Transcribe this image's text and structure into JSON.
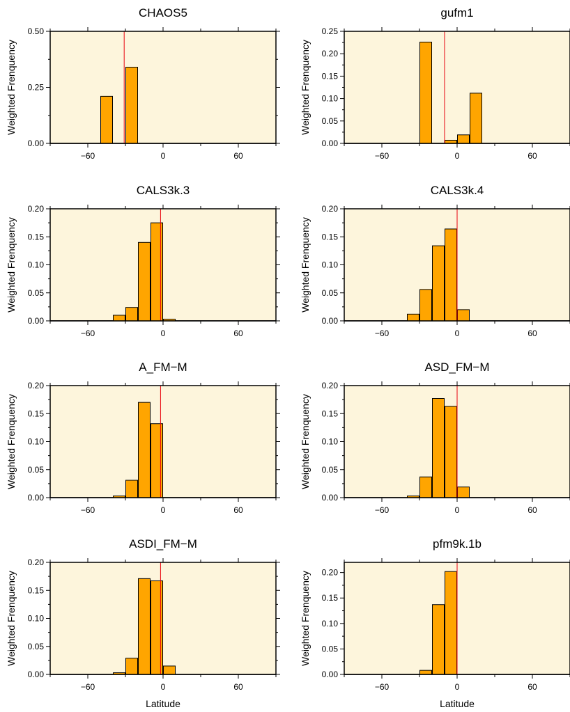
{
  "figure": {
    "colors": {
      "plot_background": "#fdf5dc",
      "bar_fill": "#ffa500",
      "bar_stroke": "#000000",
      "marker_line": "#e8000b"
    }
  },
  "chart_data": [
    {
      "type": "bar",
      "title": "CHAOS5",
      "ylabel": "Weighted Frenquency",
      "xlabel": "",
      "xlim": [
        -90,
        90
      ],
      "ylim": [
        0,
        0.5
      ],
      "yticks": [
        "0.00",
        "0.25",
        "0.50"
      ],
      "ytick_values": [
        0,
        0.25,
        0.5
      ],
      "xticks": [
        "−60",
        "0",
        "60"
      ],
      "xtick_values": [
        -60,
        0,
        60
      ],
      "bin_edges": [
        -90,
        -80,
        -70,
        -60,
        -50,
        -40,
        -30,
        -20,
        -10,
        0,
        10,
        20,
        30,
        40,
        50,
        60,
        70,
        80,
        90
      ],
      "values": [
        0,
        0,
        0,
        0,
        0.21,
        0,
        0.34,
        0,
        0,
        0,
        0,
        0,
        0,
        0,
        0,
        0,
        0,
        0
      ],
      "marker_x": -31
    },
    {
      "type": "bar",
      "title": "gufm1",
      "ylabel": "Weighted Frenquency",
      "xlabel": "",
      "xlim": [
        -90,
        90
      ],
      "ylim": [
        0,
        0.25
      ],
      "yticks": [
        "0.00",
        "0.05",
        "0.10",
        "0.15",
        "0.20",
        "0.25"
      ],
      "ytick_values": [
        0,
        0.05,
        0.1,
        0.15,
        0.2,
        0.25
      ],
      "xticks": [
        "−60",
        "0",
        "60"
      ],
      "xtick_values": [
        -60,
        0,
        60
      ],
      "bin_edges": [
        -90,
        -80,
        -70,
        -60,
        -50,
        -40,
        -30,
        -20,
        -10,
        0,
        10,
        20,
        30,
        40,
        50,
        60,
        70,
        80,
        90
      ],
      "values": [
        0,
        0,
        0,
        0,
        0,
        0,
        0.226,
        0,
        0.007,
        0.019,
        0.112,
        0,
        0,
        0,
        0,
        0,
        0,
        0
      ],
      "marker_x": -10
    },
    {
      "type": "bar",
      "title": "CALS3k.3",
      "ylabel": "Weighted Frenquency",
      "xlabel": "",
      "xlim": [
        -90,
        90
      ],
      "ylim": [
        0,
        0.2
      ],
      "yticks": [
        "0.00",
        "0.05",
        "0.10",
        "0.15",
        "0.20"
      ],
      "ytick_values": [
        0,
        0.05,
        0.1,
        0.15,
        0.2
      ],
      "xticks": [
        "−60",
        "0",
        "60"
      ],
      "xtick_values": [
        -60,
        0,
        60
      ],
      "bin_edges": [
        -90,
        -80,
        -70,
        -60,
        -50,
        -40,
        -30,
        -20,
        -10,
        0,
        10,
        20,
        30,
        40,
        50,
        60,
        70,
        80,
        90
      ],
      "values": [
        0,
        0,
        0,
        0,
        0,
        0.01,
        0.024,
        0.14,
        0.175,
        0.003,
        0,
        0,
        0,
        0,
        0,
        0,
        0,
        0
      ],
      "marker_x": -2
    },
    {
      "type": "bar",
      "title": "CALS3k.4",
      "ylabel": "Weighted Frenquency",
      "xlabel": "",
      "xlim": [
        -90,
        90
      ],
      "ylim": [
        0,
        0.2
      ],
      "yticks": [
        "0.00",
        "0.05",
        "0.10",
        "0.15",
        "0.20"
      ],
      "ytick_values": [
        0,
        0.05,
        0.1,
        0.15,
        0.2
      ],
      "xticks": [
        "−60",
        "0",
        "60"
      ],
      "xtick_values": [
        -60,
        0,
        60
      ],
      "bin_edges": [
        -90,
        -80,
        -70,
        -60,
        -50,
        -40,
        -30,
        -20,
        -10,
        0,
        10,
        20,
        30,
        40,
        50,
        60,
        70,
        80,
        90
      ],
      "values": [
        0,
        0,
        0,
        0,
        0,
        0.012,
        0.056,
        0.134,
        0.164,
        0.02,
        0,
        0,
        0,
        0,
        0,
        0,
        0,
        0
      ],
      "marker_x": 0
    },
    {
      "type": "bar",
      "title": "A_FM−M",
      "ylabel": "Weighted Frenquency",
      "xlabel": "",
      "xlim": [
        -90,
        90
      ],
      "ylim": [
        0,
        0.2
      ],
      "yticks": [
        "0.00",
        "0.05",
        "0.10",
        "0.15",
        "0.20"
      ],
      "ytick_values": [
        0,
        0.05,
        0.1,
        0.15,
        0.2
      ],
      "xticks": [
        "−60",
        "0",
        "60"
      ],
      "xtick_values": [
        -60,
        0,
        60
      ],
      "bin_edges": [
        -90,
        -80,
        -70,
        -60,
        -50,
        -40,
        -30,
        -20,
        -10,
        0,
        10,
        20,
        30,
        40,
        50,
        60,
        70,
        80,
        90
      ],
      "values": [
        0,
        0,
        0,
        0,
        0,
        0.003,
        0.031,
        0.17,
        0.132,
        0,
        0,
        0,
        0,
        0,
        0,
        0,
        0,
        0
      ],
      "marker_x": -2
    },
    {
      "type": "bar",
      "title": "ASD_FM−M",
      "ylabel": "Weighted Frenquency",
      "xlabel": "",
      "xlim": [
        -90,
        90
      ],
      "ylim": [
        0,
        0.2
      ],
      "yticks": [
        "0.00",
        "0.05",
        "0.10",
        "0.15",
        "0.20"
      ],
      "ytick_values": [
        0,
        0.05,
        0.1,
        0.15,
        0.2
      ],
      "xticks": [
        "−60",
        "0",
        "60"
      ],
      "xtick_values": [
        -60,
        0,
        60
      ],
      "bin_edges": [
        -90,
        -80,
        -70,
        -60,
        -50,
        -40,
        -30,
        -20,
        -10,
        0,
        10,
        20,
        30,
        40,
        50,
        60,
        70,
        80,
        90
      ],
      "values": [
        0,
        0,
        0,
        0,
        0,
        0.003,
        0.037,
        0.177,
        0.163,
        0.019,
        0,
        0,
        0,
        0,
        0,
        0,
        0,
        0
      ],
      "marker_x": 0
    },
    {
      "type": "bar",
      "title": "ASDI_FM−M",
      "ylabel": "Weighted Frenquency",
      "xlabel": "Latitude",
      "xlim": [
        -90,
        90
      ],
      "ylim": [
        0,
        0.2
      ],
      "yticks": [
        "0.00",
        "0.05",
        "0.10",
        "0.15",
        "0.20"
      ],
      "ytick_values": [
        0,
        0.05,
        0.1,
        0.15,
        0.2
      ],
      "xticks": [
        "−60",
        "0",
        "60"
      ],
      "xtick_values": [
        -60,
        0,
        60
      ],
      "bin_edges": [
        -90,
        -80,
        -70,
        -60,
        -50,
        -40,
        -30,
        -20,
        -10,
        0,
        10,
        20,
        30,
        40,
        50,
        60,
        70,
        80,
        90
      ],
      "values": [
        0,
        0,
        0,
        0,
        0,
        0.003,
        0.029,
        0.171,
        0.167,
        0.015,
        0,
        0,
        0,
        0,
        0,
        0,
        0,
        0
      ],
      "marker_x": -2
    },
    {
      "type": "bar",
      "title": "pfm9k.1b",
      "ylabel": "Weighted Frenquency",
      "xlabel": "Latitude",
      "xlim": [
        -90,
        90
      ],
      "ylim": [
        0,
        0.22
      ],
      "yticks": [
        "0.00",
        "0.05",
        "0.10",
        "0.15",
        "0.20"
      ],
      "ytick_values": [
        0,
        0.05,
        0.1,
        0.15,
        0.2
      ],
      "xticks": [
        "−60",
        "0",
        "60"
      ],
      "xtick_values": [
        -60,
        0,
        60
      ],
      "bin_edges": [
        -90,
        -80,
        -70,
        -60,
        -50,
        -40,
        -30,
        -20,
        -10,
        0,
        10,
        20,
        30,
        40,
        50,
        60,
        70,
        80,
        90
      ],
      "values": [
        0,
        0,
        0,
        0,
        0,
        0,
        0.008,
        0.137,
        0.202,
        0,
        0,
        0,
        0,
        0,
        0,
        0,
        0,
        0
      ],
      "marker_x": 0
    }
  ]
}
